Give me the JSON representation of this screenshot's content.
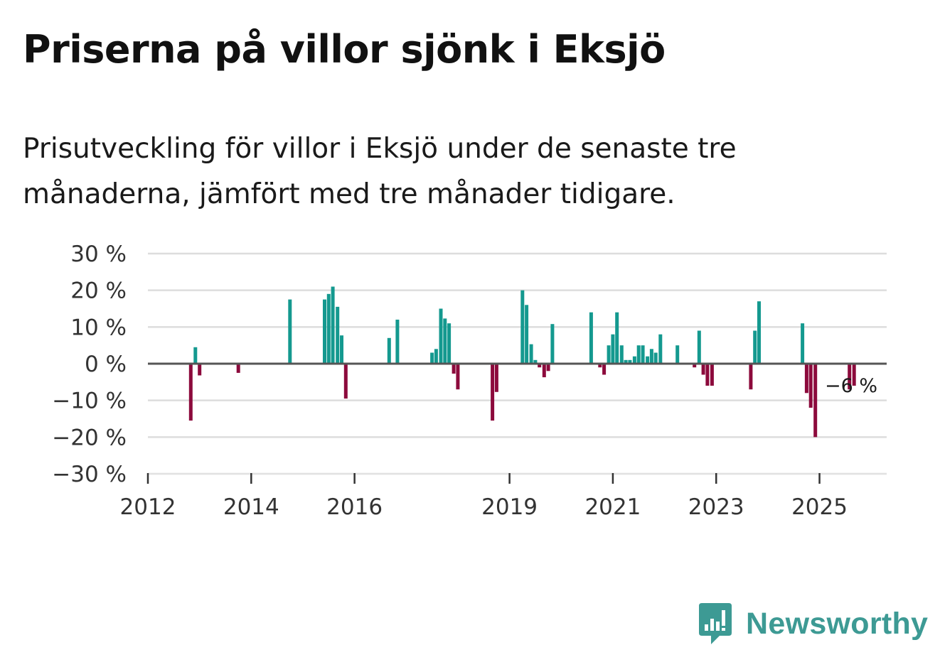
{
  "title": "Priserna på villor sjönk i Eksjö",
  "subtitle": "Prisutveckling för villor i Eksjö under de senaste tre månaderna, jämfört med tre månader tidigare.",
  "brand": {
    "name": "Newsworthy",
    "color": "#3d9a94",
    "icon": "newsworthy-chart-bubble-icon"
  },
  "colors": {
    "positive": "#14998f",
    "negative": "#8c0a3c",
    "grid": "#dddddd",
    "zero": "#555555"
  },
  "chart_data": {
    "type": "bar",
    "title": "Priserna på villor sjönk i Eksjö",
    "xlabel": "",
    "ylabel": "",
    "ylim": [
      -30,
      30
    ],
    "xlim": [
      2012.0,
      2026.3
    ],
    "grid": true,
    "y_ticks": [
      {
        "value": 30,
        "label": "30 %"
      },
      {
        "value": 20,
        "label": "20 %"
      },
      {
        "value": 10,
        "label": "10 %"
      },
      {
        "value": 0,
        "label": "0 %"
      },
      {
        "value": -10,
        "label": "−10 %"
      },
      {
        "value": -20,
        "label": "−20 %"
      },
      {
        "value": -30,
        "label": "−30 %"
      }
    ],
    "x_ticks": [
      {
        "value": 2012,
        "label": "2012"
      },
      {
        "value": 2014,
        "label": "2014"
      },
      {
        "value": 2016,
        "label": "2016"
      },
      {
        "value": 2019,
        "label": "2019"
      },
      {
        "value": 2021,
        "label": "2021"
      },
      {
        "value": 2023,
        "label": "2023"
      },
      {
        "value": 2025,
        "label": "2025"
      }
    ],
    "end_label": {
      "text": "−6 %",
      "value": -6
    },
    "series": [
      {
        "name": "Prisutveckling",
        "points": [
          {
            "x": 2012.83,
            "y": -15.5
          },
          {
            "x": 2012.92,
            "y": 4.5
          },
          {
            "x": 2013.0,
            "y": -3.2
          },
          {
            "x": 2013.75,
            "y": -2.5
          },
          {
            "x": 2014.75,
            "y": 17.5
          },
          {
            "x": 2015.42,
            "y": 17.5
          },
          {
            "x": 2015.5,
            "y": 19.0
          },
          {
            "x": 2015.58,
            "y": 21.0
          },
          {
            "x": 2015.67,
            "y": 15.5
          },
          {
            "x": 2015.75,
            "y": 7.7
          },
          {
            "x": 2015.83,
            "y": -9.5
          },
          {
            "x": 2016.67,
            "y": 7.0
          },
          {
            "x": 2016.83,
            "y": 12.0
          },
          {
            "x": 2017.5,
            "y": 3.0
          },
          {
            "x": 2017.58,
            "y": 4.0
          },
          {
            "x": 2017.67,
            "y": 15.0
          },
          {
            "x": 2017.75,
            "y": 12.3
          },
          {
            "x": 2017.83,
            "y": 11.0
          },
          {
            "x": 2017.92,
            "y": -2.7
          },
          {
            "x": 2018.0,
            "y": -7.0
          },
          {
            "x": 2018.67,
            "y": -15.5
          },
          {
            "x": 2018.75,
            "y": -7.7
          },
          {
            "x": 2019.25,
            "y": 20.0
          },
          {
            "x": 2019.33,
            "y": 16.0
          },
          {
            "x": 2019.42,
            "y": 5.3
          },
          {
            "x": 2019.5,
            "y": 1.0
          },
          {
            "x": 2019.58,
            "y": -1.0
          },
          {
            "x": 2019.67,
            "y": -3.7
          },
          {
            "x": 2019.75,
            "y": -2.0
          },
          {
            "x": 2019.83,
            "y": 10.8
          },
          {
            "x": 2020.58,
            "y": 14.0
          },
          {
            "x": 2020.75,
            "y": -1.0
          },
          {
            "x": 2020.83,
            "y": -3.0
          },
          {
            "x": 2020.92,
            "y": 5.0
          },
          {
            "x": 2021.0,
            "y": 8.0
          },
          {
            "x": 2021.08,
            "y": 14.0
          },
          {
            "x": 2021.17,
            "y": 5.0
          },
          {
            "x": 2021.25,
            "y": 1.0
          },
          {
            "x": 2021.33,
            "y": 1.0
          },
          {
            "x": 2021.42,
            "y": 2.0
          },
          {
            "x": 2021.5,
            "y": 5.0
          },
          {
            "x": 2021.58,
            "y": 5.0
          },
          {
            "x": 2021.67,
            "y": 2.0
          },
          {
            "x": 2021.75,
            "y": 4.0
          },
          {
            "x": 2021.83,
            "y": 3.0
          },
          {
            "x": 2021.92,
            "y": 8.0
          },
          {
            "x": 2022.25,
            "y": 5.0
          },
          {
            "x": 2022.58,
            "y": -1.0
          },
          {
            "x": 2022.67,
            "y": 9.0
          },
          {
            "x": 2022.75,
            "y": -3.0
          },
          {
            "x": 2022.83,
            "y": -6.0
          },
          {
            "x": 2022.92,
            "y": -6.0
          },
          {
            "x": 2023.67,
            "y": -7.0
          },
          {
            "x": 2023.75,
            "y": 9.0
          },
          {
            "x": 2023.83,
            "y": 17.0
          },
          {
            "x": 2024.67,
            "y": 11.0
          },
          {
            "x": 2024.75,
            "y": -8.0
          },
          {
            "x": 2024.83,
            "y": -12.0
          },
          {
            "x": 2024.92,
            "y": -20.0
          },
          {
            "x": 2025.58,
            "y": -7.0
          },
          {
            "x": 2025.67,
            "y": -6.0
          }
        ]
      }
    ]
  }
}
